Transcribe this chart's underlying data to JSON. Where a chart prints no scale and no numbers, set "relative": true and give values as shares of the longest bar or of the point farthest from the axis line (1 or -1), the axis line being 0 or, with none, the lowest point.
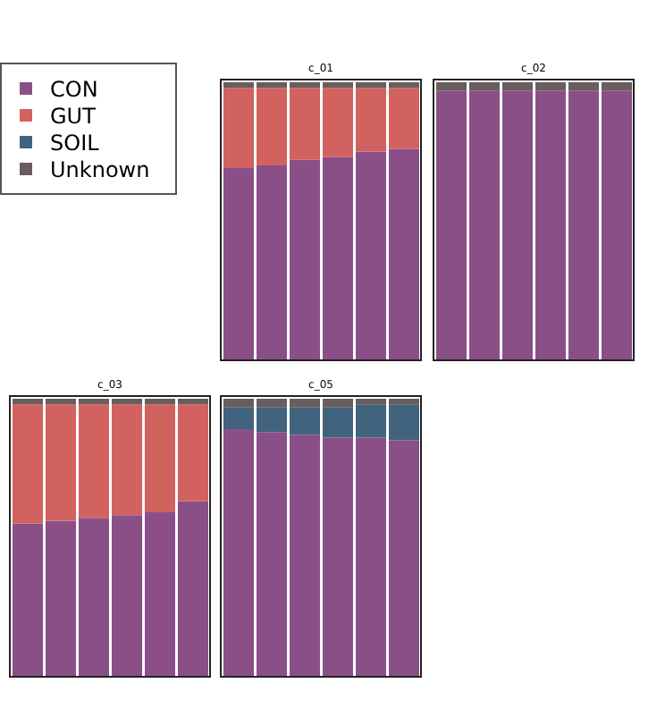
{
  "chart_data": [
    {
      "type": "bar",
      "title": "c_01",
      "stacked": true,
      "relative": true,
      "legend": "left",
      "categories": [
        null,
        null,
        null,
        null,
        null,
        null
      ],
      "series": [
        {
          "name": "CON",
          "color": "#8b4f88",
          "values": [
            0.69,
            0.7,
            0.72,
            0.73,
            0.75,
            0.76
          ]
        },
        {
          "name": "GUT",
          "color": "#d2625f",
          "values": [
            0.29,
            0.28,
            0.26,
            0.25,
            0.23,
            0.22
          ]
        },
        {
          "name": "SOIL",
          "color": "#41637e",
          "values": [
            0,
            0,
            0,
            0,
            0,
            0
          ]
        },
        {
          "name": "Unknown",
          "color": "#6a5d5d",
          "values": [
            0.02,
            0.02,
            0.02,
            0.02,
            0.02,
            0.02
          ]
        }
      ]
    },
    {
      "type": "bar",
      "title": "c_02",
      "stacked": true,
      "relative": true,
      "categories": [
        null,
        null,
        null,
        null,
        null,
        null
      ],
      "series": [
        {
          "color": "#8b4f88",
          "values": [
            0.97,
            0.97,
            0.97,
            0.97,
            0.97,
            0.97
          ]
        },
        {
          "color": "#6a5d5d",
          "values": [
            0.03,
            0.03,
            0.03,
            0.03,
            0.03,
            0.03
          ]
        }
      ]
    },
    {
      "type": "bar",
      "title": "c_03",
      "stacked": true,
      "relative": true,
      "categories": [
        null,
        null,
        null,
        null,
        null,
        null
      ],
      "series": [
        {
          "color": "#8b4f88",
          "values": [
            0.55,
            0.56,
            0.57,
            0.58,
            0.59,
            0.63
          ]
        },
        {
          "color": "#d2625f",
          "values": [
            0.43,
            0.42,
            0.41,
            0.4,
            0.39,
            0.35
          ]
        },
        {
          "color": "#6a5d5d",
          "values": [
            0.02,
            0.02,
            0.02,
            0.02,
            0.02,
            0.02
          ]
        }
      ]
    },
    {
      "type": "bar",
      "title": "c_05",
      "stacked": true,
      "relative": true,
      "categories": [
        null,
        null,
        null,
        null,
        null,
        null
      ],
      "series": [
        {
          "color": "#8b4f88",
          "values": [
            0.89,
            0.88,
            0.87,
            0.86,
            0.86,
            0.85
          ]
        },
        {
          "color": "#41637e",
          "values": [
            0.08,
            0.09,
            0.1,
            0.11,
            0.12,
            0.13
          ]
        },
        {
          "color": "#6a5d5d",
          "values": [
            0.03,
            0.03,
            0.03,
            0.03,
            0.02,
            0.02
          ]
        }
      ]
    }
  ]
}
